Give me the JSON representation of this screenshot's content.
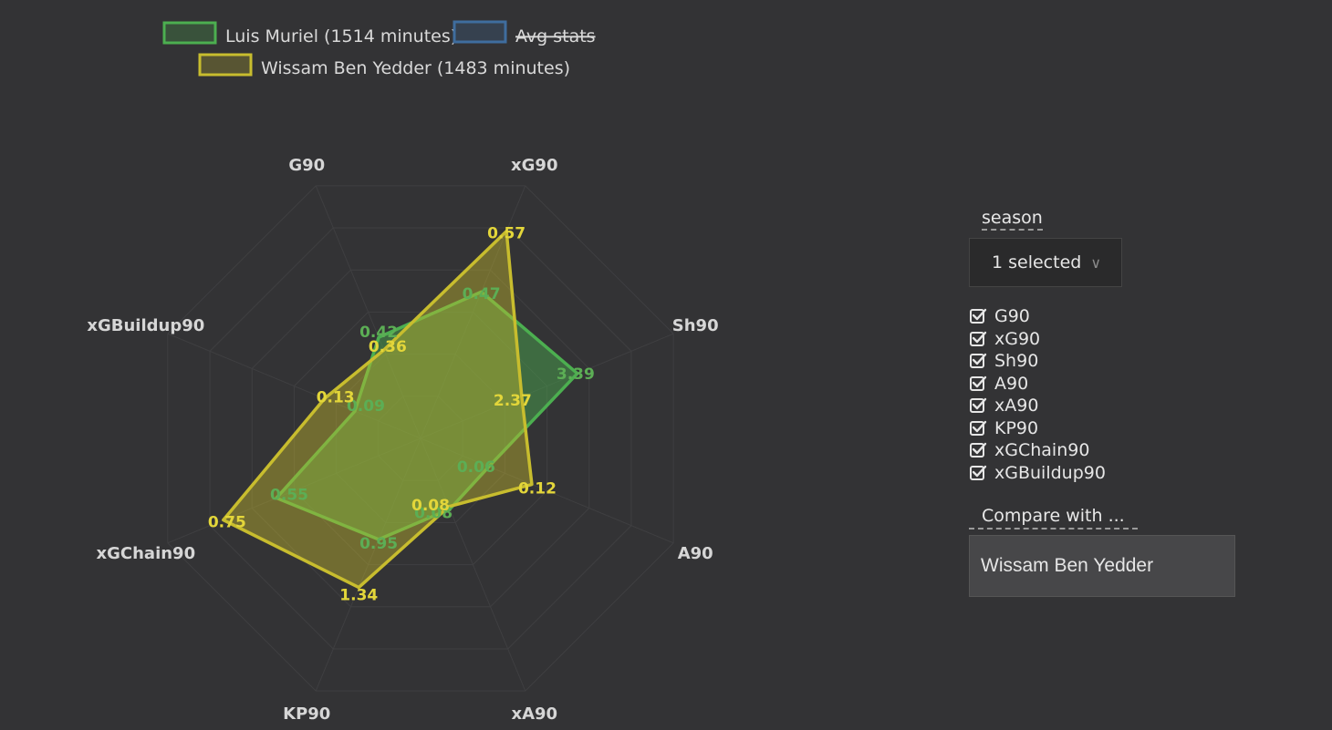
{
  "legend": [
    {
      "label": "Luis Muriel (1514 minutes)",
      "color": "#4caf50",
      "strike": false
    },
    {
      "label": "Avg stats",
      "color": "#3f6d9e",
      "strike": true
    },
    {
      "label": "Wissam Ben Yedder (1483 minutes)",
      "color": "#c8bd2e",
      "strike": false
    }
  ],
  "chart_data": {
    "type": "radar",
    "axes": [
      "G90",
      "xG90",
      "Sh90",
      "A90",
      "xA90",
      "KP90",
      "xGChain90",
      "xGBuildup90"
    ],
    "series": [
      {
        "name": "Luis Muriel (1514 minutes)",
        "values": [
          0.42,
          0.47,
          3.39,
          0.06,
          0.08,
          0.95,
          0.55,
          0.09
        ],
        "radius_fraction": [
          0.4,
          0.58,
          0.62,
          0.27,
          0.28,
          0.4,
          0.57,
          0.26
        ],
        "value_labels": [
          "0.42",
          "0.47",
          "3.39",
          "0.06",
          "0.08",
          "0.95",
          "0.55",
          "0.09"
        ],
        "color": "#4caf50"
      },
      {
        "name": "Wissam Ben Yedder (1483 minutes)",
        "values": [
          0.36,
          0.57,
          2.37,
          0.12,
          0.08,
          1.34,
          0.75,
          0.13
        ],
        "radius_fraction": [
          0.35,
          0.82,
          0.4,
          0.44,
          0.27,
          0.59,
          0.78,
          0.38
        ],
        "value_labels": [
          "0.36",
          "0.57",
          "2.37",
          "0.12",
          "0.08",
          "1.34",
          "0.75",
          "0.13"
        ],
        "color": "#c8bd2e"
      }
    ],
    "rings": 6
  },
  "controls": {
    "season_label": "season",
    "season_value": "1 selected",
    "metrics": [
      "G90",
      "xG90",
      "Sh90",
      "A90",
      "xA90",
      "KP90",
      "xGChain90",
      "xGBuildup90"
    ],
    "compare_label": "Compare with ...",
    "compare_value": "Wissam Ben Yedder"
  }
}
